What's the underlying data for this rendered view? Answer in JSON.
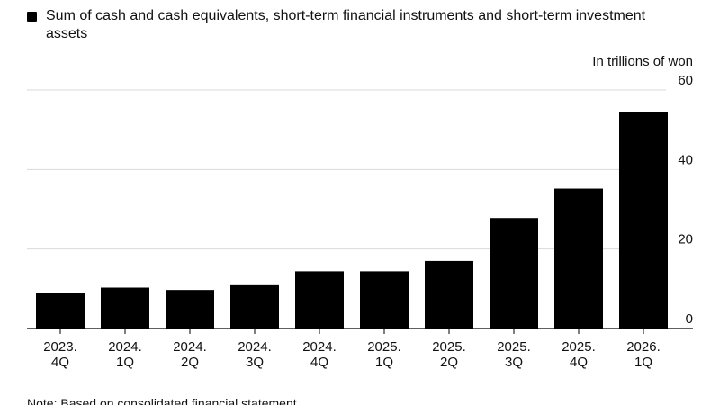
{
  "legend": {
    "text": "Sum of cash and cash equivalents, short-term financial instruments and short-term investment assets",
    "color": "#000000"
  },
  "unit_label": "In trillions of won",
  "note": "Note: Based on consolidated financial statement",
  "chart_data": {
    "type": "bar",
    "categories": [
      [
        "2023.",
        "4Q"
      ],
      [
        "2024.",
        "1Q"
      ],
      [
        "2024.",
        "2Q"
      ],
      [
        "2024.",
        "3Q"
      ],
      [
        "2024.",
        "4Q"
      ],
      [
        "2025.",
        "1Q"
      ],
      [
        "2025.",
        "2Q"
      ],
      [
        "2025.",
        "3Q"
      ],
      [
        "2025.",
        "4Q"
      ],
      [
        "2026.",
        "1Q"
      ]
    ],
    "series": [
      {
        "values": [
          8.9,
          10.3,
          9.7,
          10.9,
          14.4,
          14.4,
          17.0,
          27.8,
          35.2,
          54.4
        ]
      }
    ],
    "ylabel": "In trillions of won",
    "ylim": [
      0,
      60
    ],
    "yticks": [
      0,
      20,
      40,
      60
    ],
    "grid": true,
    "bar_color": "#000000",
    "grid_color": "#d9d9d9"
  }
}
